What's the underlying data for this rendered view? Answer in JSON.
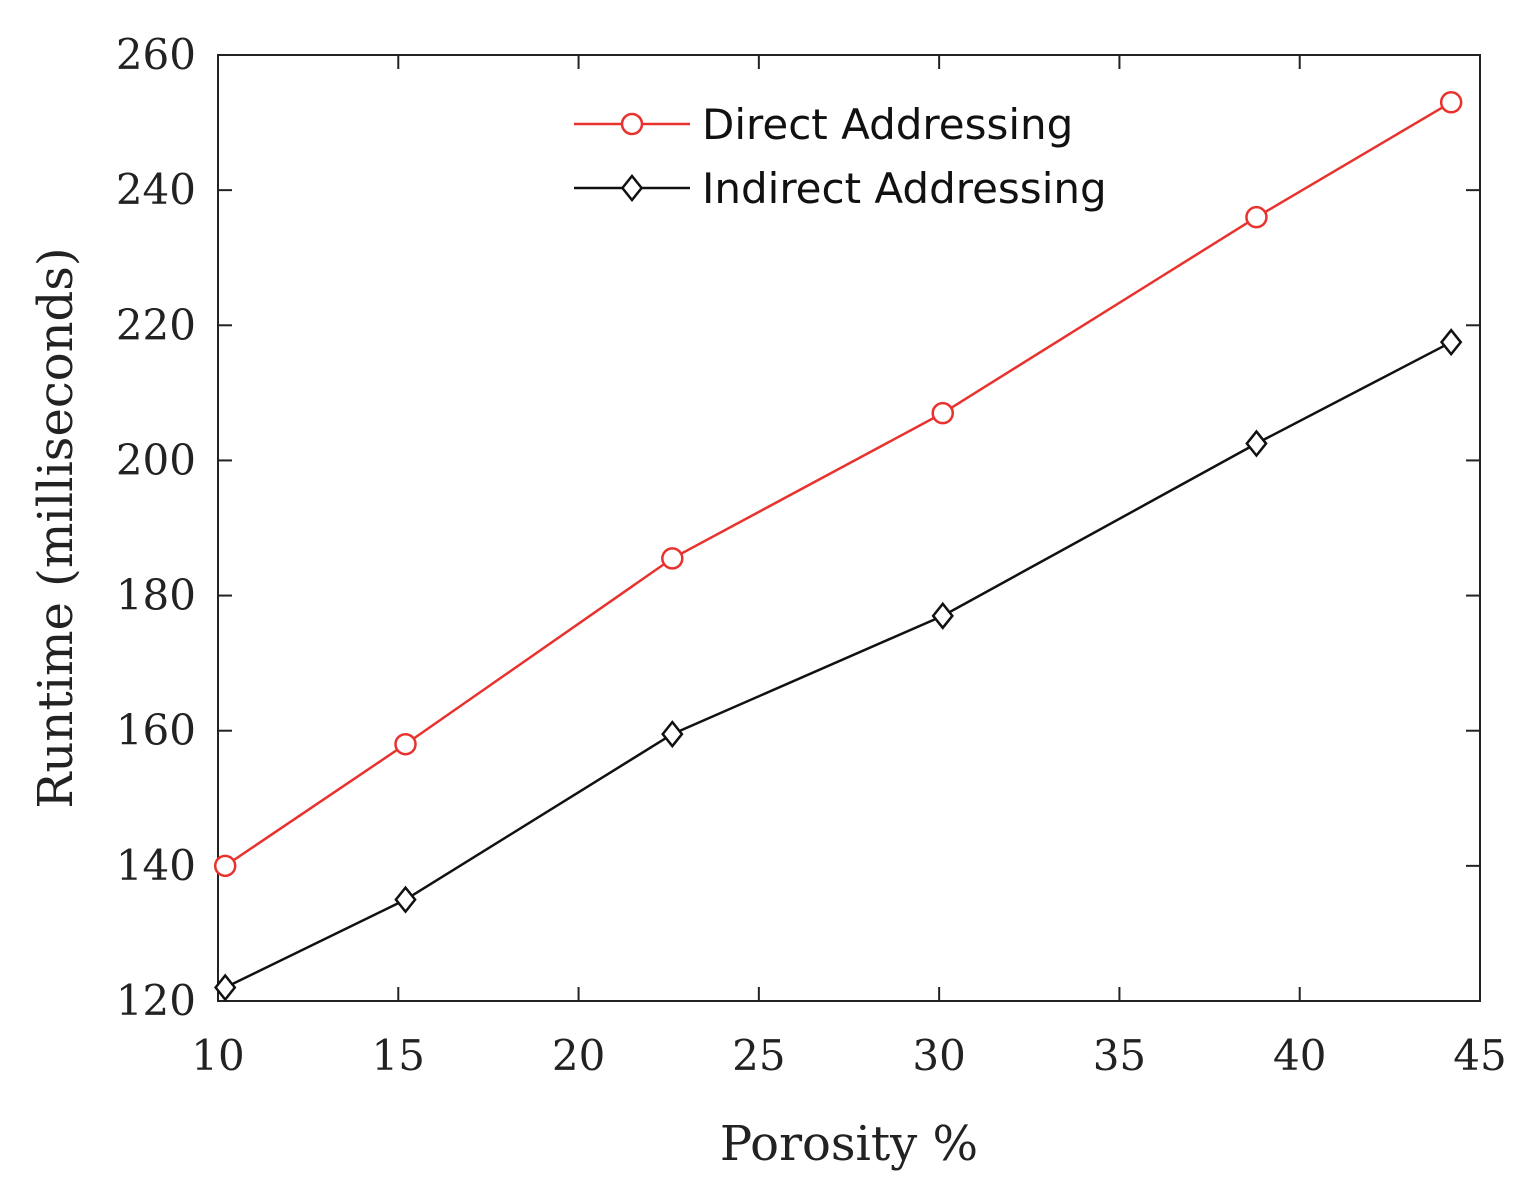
{
  "chart_data": {
    "type": "line",
    "xlabel": "Porosity %",
    "ylabel": "Runtime (milliseconds)",
    "xlim": [
      10,
      45
    ],
    "ylim": [
      120,
      260
    ],
    "xticks": [
      "10",
      "15",
      "20",
      "25",
      "30",
      "35",
      "40",
      "45"
    ],
    "yticks": [
      "120",
      "140",
      "160",
      "180",
      "200",
      "220",
      "240",
      "260"
    ],
    "grid": false,
    "legend_position": "top-center",
    "series": [
      {
        "name": "Direct Addressing",
        "color": "#e8322e",
        "marker": "circle",
        "x": [
          10.2,
          15.2,
          22.6,
          30.1,
          38.8,
          44.2
        ],
        "y": [
          140,
          158,
          185.5,
          207,
          236,
          253
        ]
      },
      {
        "name": "Indirect Addressing",
        "color": "#111111",
        "marker": "diamond",
        "x": [
          10.2,
          15.2,
          22.6,
          30.1,
          38.8,
          44.2
        ],
        "y": [
          122,
          135,
          159.5,
          177,
          202.5,
          217.5
        ]
      }
    ]
  }
}
